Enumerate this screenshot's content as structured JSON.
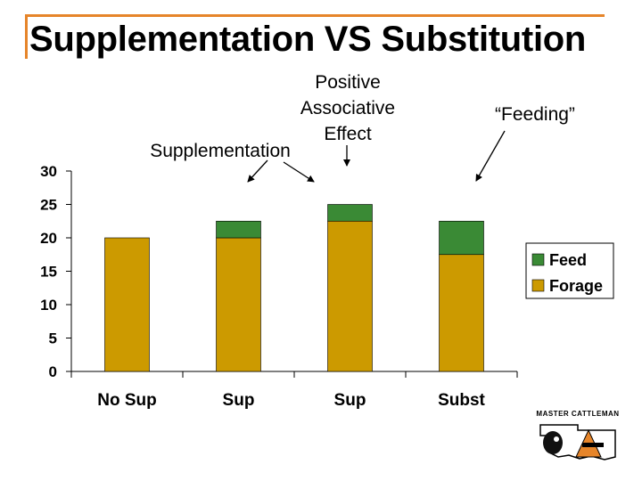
{
  "slide": {
    "title": "Supplementation VS Substitution"
  },
  "annotations": {
    "supplementation": "Supplementation",
    "positive_associative_effect": [
      "Positive",
      "Associative",
      "Effect"
    ],
    "feeding": "“Feeding”"
  },
  "logo": {
    "text": "MASTER CATTLEMAN",
    "icon": "cow-and-state-map-logo"
  },
  "colors": {
    "feed": "#3a8a35",
    "forage": "#cc9a00",
    "accent": "#e6852a"
  },
  "chart_data": {
    "type": "bar",
    "stacked": true,
    "categories": [
      "No Sup",
      "Sup",
      "Sup",
      "Subst"
    ],
    "series": [
      {
        "name": "Forage",
        "values": [
          20,
          20,
          22.5,
          17.5
        ],
        "color": "#cc9a00"
      },
      {
        "name": "Feed",
        "values": [
          0,
          2.5,
          2.5,
          5
        ],
        "color": "#3a8a35"
      }
    ],
    "yticks": [
      "0",
      "5",
      "10",
      "15",
      "20",
      "25",
      "30"
    ],
    "ylim": [
      0,
      30
    ],
    "legend": [
      {
        "label": "Feed",
        "color": "#3a8a35"
      },
      {
        "label": "Forage",
        "color": "#cc9a00"
      }
    ],
    "legend_position": "right",
    "grid": false
  }
}
